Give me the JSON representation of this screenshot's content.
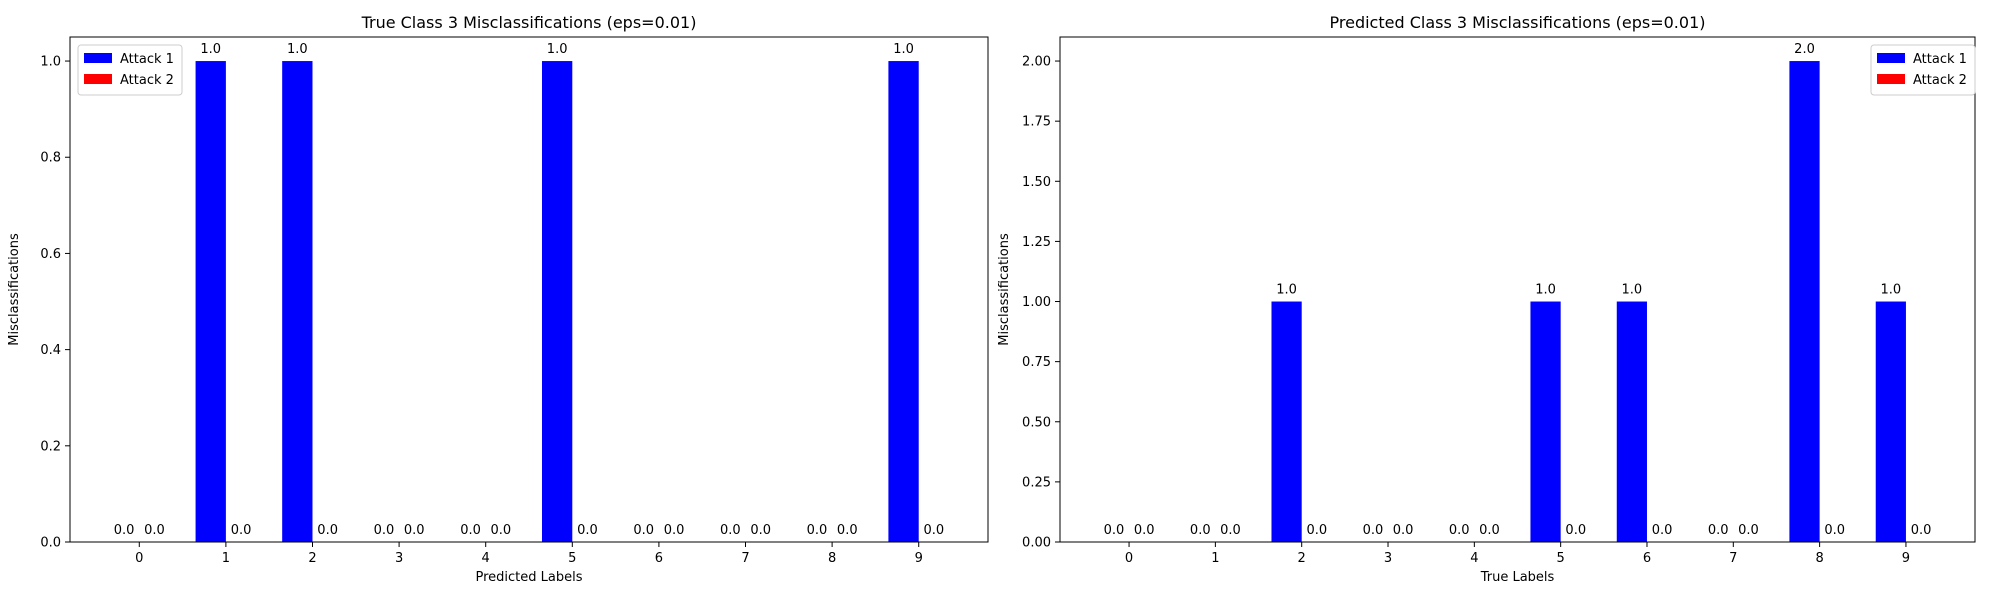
{
  "chart_data": [
    {
      "type": "bar",
      "title": "True Class 3 Misclassifications (eps=0.01)",
      "xlabel": "Predicted Labels",
      "ylabel": "Misclassifications",
      "categories": [
        "0",
        "1",
        "2",
        "3",
        "4",
        "5",
        "6",
        "7",
        "8",
        "9"
      ],
      "series": [
        {
          "name": "Attack 1",
          "color": "#0000ff",
          "values": [
            0,
            1,
            1,
            0,
            0,
            1,
            0,
            0,
            0,
            1
          ]
        },
        {
          "name": "Attack 2",
          "color": "#ff0000",
          "values": [
            0,
            0,
            0,
            0,
            0,
            0,
            0,
            0,
            0,
            0
          ]
        }
      ],
      "ylim": [
        0,
        1.05
      ],
      "yticks": [
        "0.0",
        "0.2",
        "0.4",
        "0.6",
        "0.8",
        "1.0"
      ],
      "grid": false,
      "legend": "top-left"
    },
    {
      "type": "bar",
      "title": "Predicted Class 3 Misclassifications (eps=0.01)",
      "xlabel": "True Labels",
      "ylabel": "Misclassifications",
      "categories": [
        "0",
        "1",
        "2",
        "3",
        "4",
        "5",
        "6",
        "7",
        "8",
        "9"
      ],
      "series": [
        {
          "name": "Attack 1",
          "color": "#0000ff",
          "values": [
            0,
            0,
            1,
            0,
            0,
            1,
            1,
            0,
            2,
            1
          ]
        },
        {
          "name": "Attack 2",
          "color": "#ff0000",
          "values": [
            0,
            0,
            0,
            0,
            0,
            0,
            0,
            0,
            0,
            0
          ]
        }
      ],
      "ylim": [
        0,
        2.1
      ],
      "yticks": [
        "0.00",
        "0.25",
        "0.50",
        "0.75",
        "1.00",
        "1.25",
        "1.50",
        "1.75",
        "2.00"
      ],
      "grid": false,
      "legend": "top-right"
    }
  ]
}
